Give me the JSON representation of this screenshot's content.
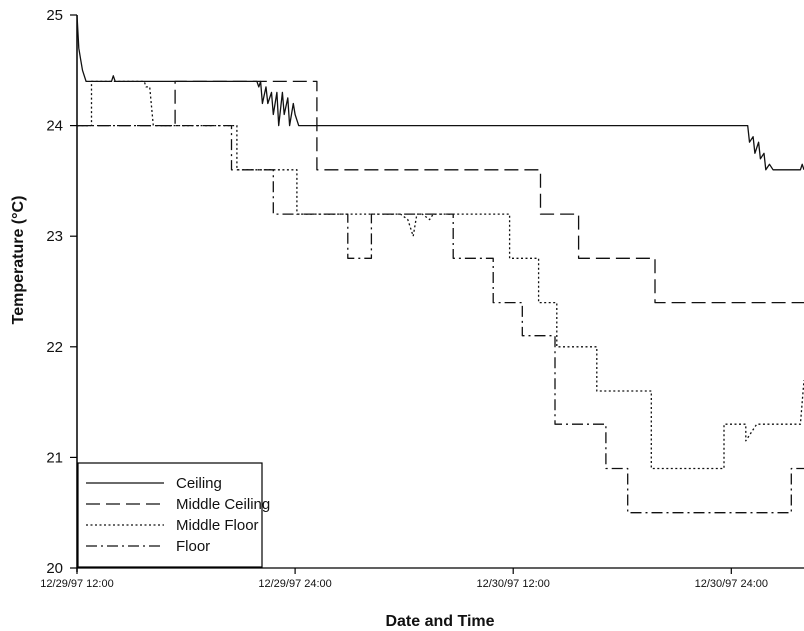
{
  "chart_data": {
    "type": "line",
    "title": "",
    "xlabel": "Date and Time",
    "ylabel": "Temperature (°C)",
    "ylim": [
      20,
      25
    ],
    "xlim": [
      0,
      40
    ],
    "x_unit": "hours after 12/29/97 12:00",
    "y_ticks": [
      "20",
      "21",
      "22",
      "23",
      "24",
      "25"
    ],
    "y_tick_values": [
      20,
      21,
      22,
      23,
      24,
      25
    ],
    "x_ticks": [
      "12/29/97 12:00",
      "12/29/97 24:00",
      "12/30/97 12:00",
      "12/30/97 24:00"
    ],
    "x_tick_values": [
      0,
      12,
      24,
      36
    ],
    "grid": false,
    "legend_position": "bottom-left",
    "series": [
      {
        "name": "Ceiling",
        "style": "solid",
        "x": [
          0,
          0.1,
          0.2,
          0.3,
          0.5,
          1.9,
          2.0,
          2.1,
          9.9,
          10.0,
          10.1,
          10.2,
          10.4,
          10.5,
          10.7,
          10.8,
          11.0,
          11.1,
          11.3,
          11.4,
          11.6,
          11.7,
          11.9,
          12.0,
          12.2,
          12.5,
          36.9,
          37.0,
          37.2,
          37.3,
          37.5,
          37.6,
          37.8,
          37.9,
          38.1,
          38.3,
          39.8,
          39.9,
          40.0
        ],
        "y": [
          25.0,
          24.7,
          24.6,
          24.5,
          24.4,
          24.4,
          24.45,
          24.4,
          24.4,
          24.35,
          24.4,
          24.2,
          24.35,
          24.2,
          24.3,
          24.1,
          24.3,
          24.0,
          24.3,
          24.1,
          24.25,
          24.0,
          24.2,
          24.1,
          24.0,
          24.0,
          24.0,
          23.85,
          23.9,
          23.75,
          23.85,
          23.7,
          23.75,
          23.6,
          23.65,
          23.6,
          23.6,
          23.65,
          23.6
        ]
      },
      {
        "name": "Middle Ceiling",
        "style": "dashed",
        "x": [
          0,
          5.4,
          5.4,
          13.2,
          13.2,
          25.5,
          25.5,
          27.6,
          27.6,
          31.8,
          31.8,
          40.0
        ],
        "y": [
          24.0,
          24.0,
          24.4,
          24.4,
          23.6,
          23.6,
          23.2,
          23.2,
          22.8,
          22.8,
          22.4,
          22.4
        ]
      },
      {
        "name": "Middle Floor",
        "style": "dotted",
        "x": [
          0,
          0.8,
          0.8,
          3.7,
          3.8,
          4.0,
          4.2,
          4.2,
          8.8,
          8.8,
          12.1,
          12.1,
          17.8,
          18.2,
          18.5,
          18.7,
          19.0,
          19.4,
          19.6,
          23.8,
          23.8,
          25.4,
          25.4,
          26.4,
          26.4,
          28.6,
          28.6,
          31.6,
          31.6,
          35.6,
          35.6,
          36.8,
          36.8,
          37.4,
          37.5,
          37.6,
          37.7,
          37.8,
          39.8,
          39.9,
          40.0
        ],
        "y": [
          24.0,
          24.0,
          24.4,
          24.4,
          24.35,
          24.35,
          24.0,
          24.0,
          24.0,
          23.6,
          23.6,
          23.2,
          23.2,
          23.15,
          23.0,
          23.2,
          23.2,
          23.15,
          23.2,
          23.2,
          22.8,
          22.8,
          22.4,
          22.4,
          22.0,
          22.0,
          21.6,
          21.6,
          20.9,
          20.9,
          21.3,
          21.3,
          21.15,
          21.3,
          21.3,
          21.3,
          21.3,
          21.3,
          21.3,
          21.5,
          21.7
        ]
      },
      {
        "name": "Floor",
        "style": "dashdot",
        "x": [
          0,
          8.5,
          8.5,
          10.8,
          10.8,
          14.9,
          14.9,
          16.2,
          16.2,
          20.7,
          20.7,
          22.9,
          22.9,
          24.5,
          24.5,
          26.3,
          26.3,
          29.1,
          29.1,
          30.3,
          30.3,
          31.6,
          31.6,
          39.3,
          39.3,
          40.0
        ],
        "y": [
          24.0,
          24.0,
          23.6,
          23.6,
          23.2,
          23.2,
          22.8,
          22.8,
          23.2,
          23.2,
          22.8,
          22.8,
          22.4,
          22.4,
          22.1,
          22.1,
          21.3,
          21.3,
          20.9,
          20.9,
          20.5,
          20.5,
          20.5,
          20.5,
          20.9,
          20.9
        ]
      }
    ]
  }
}
